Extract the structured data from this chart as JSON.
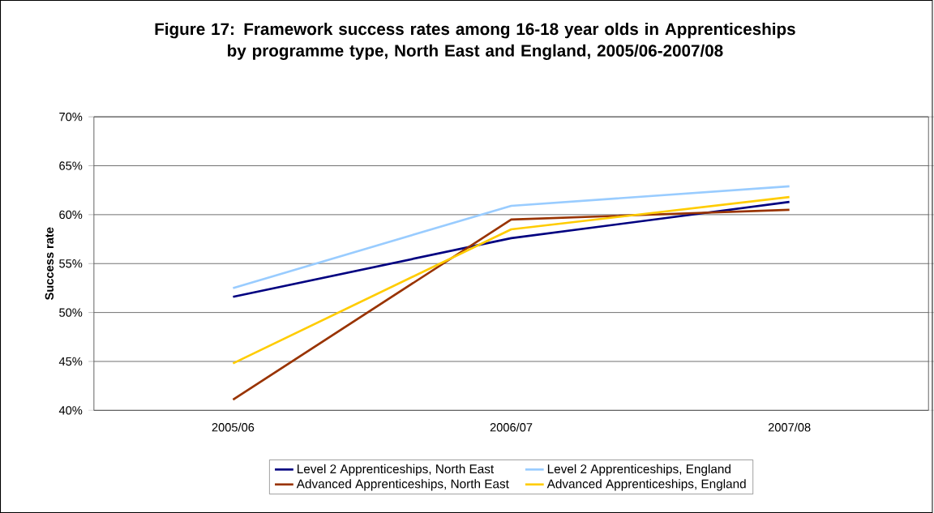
{
  "chart_data": {
    "type": "line",
    "title": "Figure 17: Framework success rates among 16-18 year olds in Apprenticeships\nby programme type, North East and England, 2005/06-2007/08",
    "ylabel": "Success rate",
    "categories": [
      "2005/06",
      "2006/07",
      "2007/08"
    ],
    "series": [
      {
        "name": "Level 2 Apprenticeships, North East",
        "color": "#000080",
        "values": [
          51.6,
          57.6,
          61.3
        ]
      },
      {
        "name": "Level 2 Apprenticeships, England",
        "color": "#99ccff",
        "values": [
          52.5,
          60.9,
          62.9
        ]
      },
      {
        "name": "Advanced Apprenticeships, North East",
        "color": "#993300",
        "values": [
          41.1,
          59.5,
          60.5
        ]
      },
      {
        "name": "Advanced Apprenticeships, England",
        "color": "#ffcc00",
        "values": [
          44.8,
          58.5,
          61.8
        ]
      }
    ],
    "ylim": [
      40,
      70
    ],
    "yticks": [
      {
        "value": 40,
        "label": "40%"
      },
      {
        "value": 45,
        "label": "45%"
      },
      {
        "value": 50,
        "label": "50%"
      },
      {
        "value": 55,
        "label": "55%"
      },
      {
        "value": 60,
        "label": "60%"
      },
      {
        "value": 65,
        "label": "65%"
      },
      {
        "value": 70,
        "label": "70%"
      }
    ],
    "grid": "y",
    "legend": "bottom",
    "marker": "none",
    "line_style": "solid"
  }
}
